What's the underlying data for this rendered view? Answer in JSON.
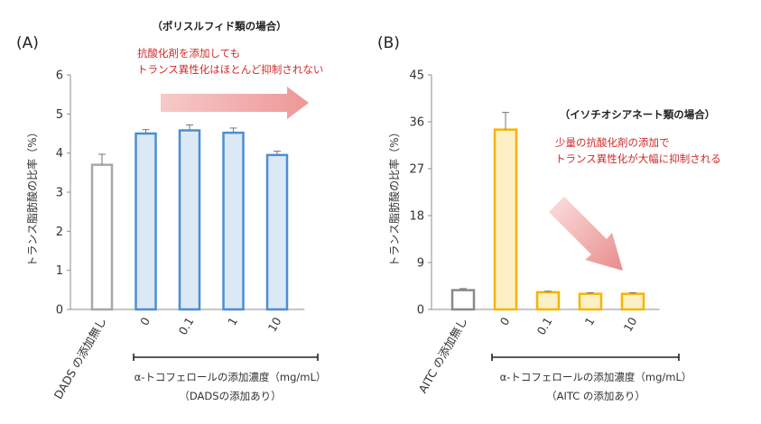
{
  "chart_data": [
    {
      "type": "bar",
      "panel_label": "(A)",
      "title": "（ポリスルフィド類の場合）",
      "annotation": [
        "抗酸化剤を添加しても",
        "トランス異性化はほとんど抑制されない"
      ],
      "ylabel": "トランス脂肪酸の比率（%）",
      "ylim": [
        0,
        6
      ],
      "yticks": [
        "0",
        "1",
        "2",
        "3",
        "4",
        "5",
        "6"
      ],
      "categories": [
        "DADS の添加無し",
        "0",
        "0.1",
        "1",
        "10"
      ],
      "values": [
        3.7,
        4.5,
        4.58,
        4.52,
        3.95
      ],
      "errors": [
        0.27,
        0.1,
        0.14,
        0.12,
        0.1
      ],
      "xlabel": [
        "α-トコフェロールの添加濃度（mg/mL）",
        "（DADSの添加あり）"
      ],
      "colors": {
        "control": "#a8a8a8",
        "series": "#4a8fd4",
        "fill": "#dbe9f6"
      },
      "grid": false
    },
    {
      "type": "bar",
      "panel_label": "(B)",
      "title": "（イソチオシアネート類の場合）",
      "annotation": [
        "少量の抗酸化剤の添加で",
        "トランス異性化が大幅に抑制される"
      ],
      "ylabel": "トランス脂肪酸の比率（%）",
      "ylim": [
        0,
        45
      ],
      "yticks": [
        "0",
        "9",
        "18",
        "27",
        "36",
        "45"
      ],
      "categories": [
        "AITC の添加無し",
        "0",
        "0.1",
        "1",
        "10"
      ],
      "values": [
        3.7,
        34.5,
        3.3,
        3.0,
        3.0
      ],
      "errors": [
        0.3,
        3.3,
        0.2,
        0.2,
        0.2
      ],
      "xlabel": [
        "α-トコフェロールの添加濃度（mg/mL）",
        "（AITC の添加あり）"
      ],
      "colors": {
        "control": "#8a8a8a",
        "series": "#f5b400",
        "fill": "#fdf0c4"
      },
      "grid": false
    }
  ]
}
